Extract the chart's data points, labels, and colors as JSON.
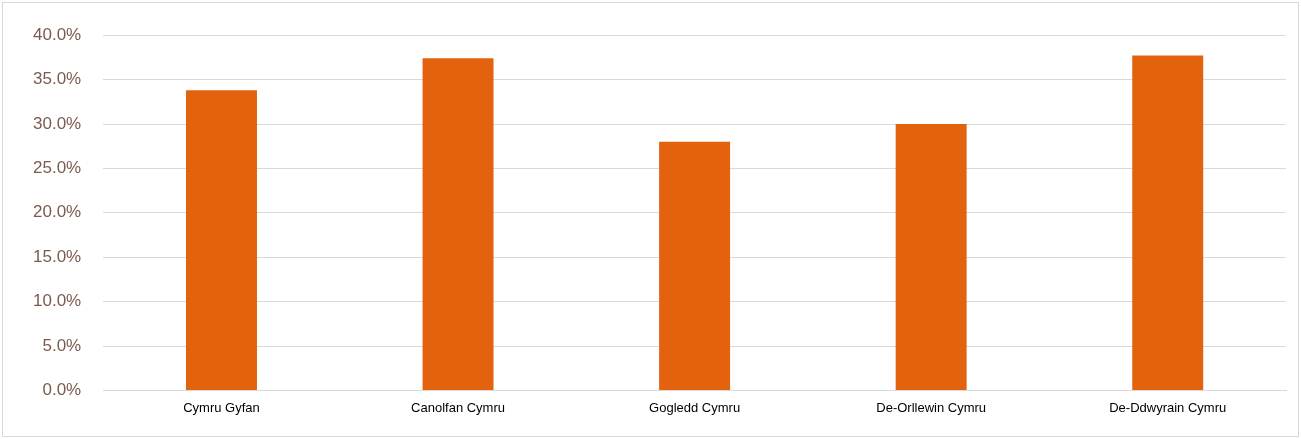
{
  "chart_data": {
    "type": "bar",
    "categories": [
      "Cymru Gyfan",
      "Canolfan Cymru",
      "Gogledd Cymru",
      "De-Orllewin Cymru",
      "De-Ddwyrain Cymru"
    ],
    "values": [
      33.8,
      37.4,
      28.0,
      30.0,
      37.7
    ],
    "color": "#e2620e",
    "ylim": [
      0,
      40
    ],
    "yticks": [
      {
        "value": 0,
        "label": "0.0%"
      },
      {
        "value": 5,
        "label": "5.0%"
      },
      {
        "value": 10,
        "label": "10.0%"
      },
      {
        "value": 15,
        "label": "15.0%"
      },
      {
        "value": 20,
        "label": "20.0%"
      },
      {
        "value": 25,
        "label": "25.0%"
      },
      {
        "value": 30,
        "label": "30.0%"
      },
      {
        "value": 35,
        "label": "35.0%"
      },
      {
        "value": 40,
        "label": "40.0%"
      }
    ],
    "grid": "y",
    "legend": false
  }
}
